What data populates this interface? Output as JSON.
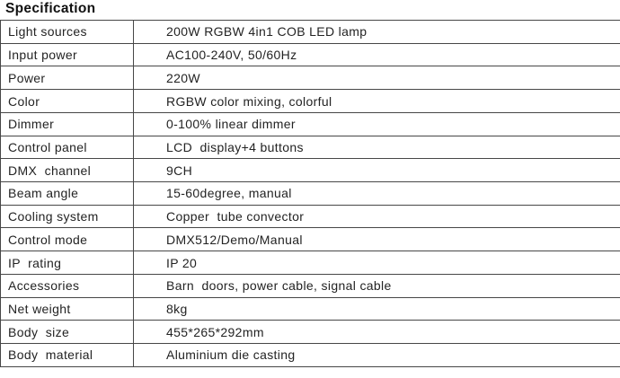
{
  "page": {
    "title": "Specification"
  },
  "table": {
    "rows": [
      {
        "label": "Light sources",
        "value": "200W RGBW 4in1 COB LED lamp"
      },
      {
        "label": "Input power",
        "value": "AC100-240V, 50/60Hz"
      },
      {
        "label": "Power",
        "value": "220W"
      },
      {
        "label": "Color",
        "value": "RGBW color mixing, colorful"
      },
      {
        "label": "Dimmer",
        "value": "0-100% linear dimmer"
      },
      {
        "label": "Control panel",
        "value": "LCD  display+4 buttons"
      },
      {
        "label": "DMX  channel",
        "value": "9CH"
      },
      {
        "label": "Beam angle",
        "value": "15-60degree, manual"
      },
      {
        "label": "Cooling system",
        "value": "Copper  tube convector"
      },
      {
        "label": "Control mode",
        "value": "DMX512/Demo/Manual"
      },
      {
        "label": "IP  rating",
        "value": "IP 20"
      },
      {
        "label": "Accessories",
        "value": "Barn  doors, power cable, signal cable"
      },
      {
        "label": "Net weight",
        "value": "8kg"
      },
      {
        "label": "Body  size",
        "value": "455*265*292mm"
      },
      {
        "label": "Body  material",
        "value": "Aluminium die casting"
      }
    ]
  },
  "colors": {
    "text": "#232323",
    "border": "#474747",
    "background": "#ffffff"
  }
}
